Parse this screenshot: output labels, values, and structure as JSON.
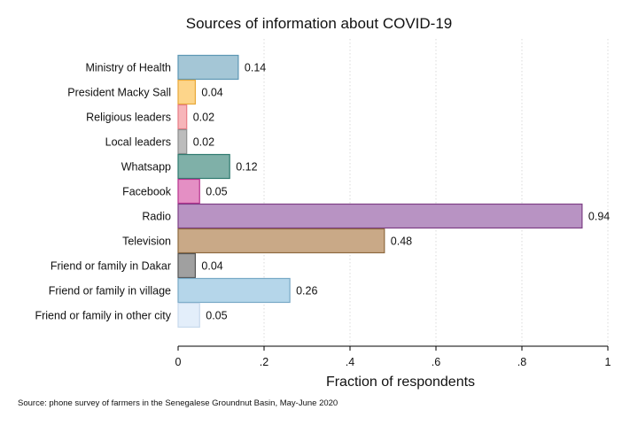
{
  "chart_data": {
    "type": "bar",
    "orientation": "horizontal",
    "title": "Sources of information about COVID-19",
    "xlabel": "Fraction of respondents",
    "ylabel": "",
    "xlim": [
      0,
      1
    ],
    "x_ticks": [
      0,
      0.2,
      0.4,
      0.6,
      0.8,
      1
    ],
    "x_tick_labels": [
      "0",
      ".2",
      ".4",
      ".6",
      ".8",
      "1"
    ],
    "grid": "vertical dotted",
    "categories": [
      "Ministry of Health",
      "President Macky Sall",
      "Religious leaders",
      "Local leaders",
      "Whatsapp",
      "Facebook",
      "Radio",
      "Television",
      "Friend or family in Dakar",
      "Friend or family in village",
      "Friend or family in other city"
    ],
    "values": [
      0.14,
      0.04,
      0.02,
      0.02,
      0.12,
      0.05,
      0.94,
      0.48,
      0.04,
      0.26,
      0.05
    ],
    "value_labels": [
      "0.14",
      "0.04",
      "0.02",
      "0.02",
      "0.12",
      "0.05",
      "0.94",
      "0.48",
      "0.04",
      "0.26",
      "0.05"
    ],
    "colors": [
      "#a4c6d6",
      "#fdd58a",
      "#f7b5b9",
      "#bcbcbc",
      "#7fb0a8",
      "#e48fc4",
      "#b893c3",
      "#c9a987",
      "#a0a0a0",
      "#b5d6ea",
      "#e3eefa"
    ],
    "edge_colors": [
      "#5c97b4",
      "#e8a93a",
      "#e77c86",
      "#8f8f8f",
      "#2f7a6f",
      "#b8338f",
      "#7d3f86",
      "#8e6a3f",
      "#555555",
      "#78a9c6",
      "#c7d9ec"
    ],
    "note": "Source: phone survey of farmers in the Senegalese Groundnut Basin, May-June 2020"
  }
}
